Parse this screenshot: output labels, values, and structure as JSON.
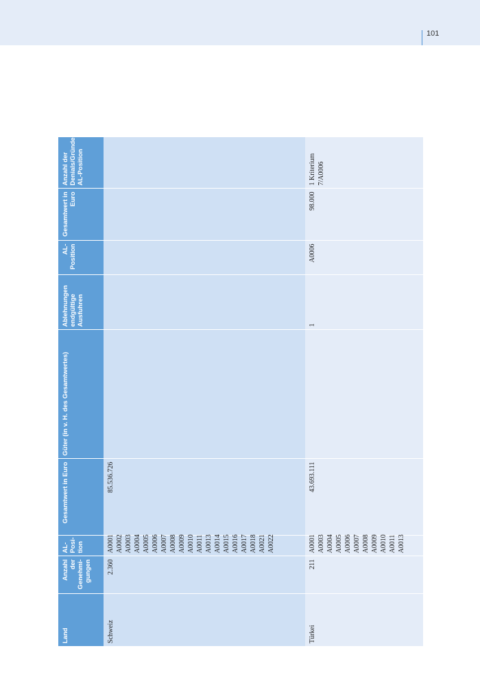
{
  "page": {
    "number": "101"
  },
  "table": {
    "headers": {
      "land": "Land",
      "anzahl": "Anzahl der Genehmi-gungen",
      "al_position": "AL-Posi-tion",
      "gesamtwert": "Gesamtwert in Euro",
      "gueter": "Güter (in v. H. des Gesamtwertes)",
      "ablehnungen": "Ablehnungen endgültige Ausfuhren",
      "al_position2": "AL-Position",
      "gesamtwert2": "Gesamtwert in Euro",
      "anzahl_denials": "Anzahl der Denials/Gründe/ AL-Position"
    },
    "rows": [
      {
        "land": "Schweiz",
        "anzahl": "2.360",
        "positions": [
          "A0001",
          "A0002",
          "A0003",
          "A0004",
          "A0005",
          "A0006",
          "A0007",
          "A0008",
          "A0009",
          "A0010",
          "A0011",
          "A0013",
          "A0014",
          "A0015",
          "A0016",
          "A0017",
          "A0018",
          "A0021",
          "A0022"
        ],
        "gesamtwert": "85.536.726",
        "gueter": "",
        "ablehnungen": "",
        "al_position2": "",
        "gesamtwert2": "",
        "denials": ""
      },
      {
        "land": "Türkei",
        "anzahl": "211",
        "positions": [
          "A0001",
          "A0003",
          "A0004",
          "A0005",
          "A0006",
          "A0007",
          "A0008",
          "A0009",
          "A0010",
          "A0011",
          "A0013"
        ],
        "gesamtwert": "43.693.111",
        "gueter": "",
        "ablehnungen": "1",
        "al_position2": "A0006",
        "gesamtwert2": "98.000",
        "denials": "1 Kriterium 7/A0006"
      }
    ]
  }
}
